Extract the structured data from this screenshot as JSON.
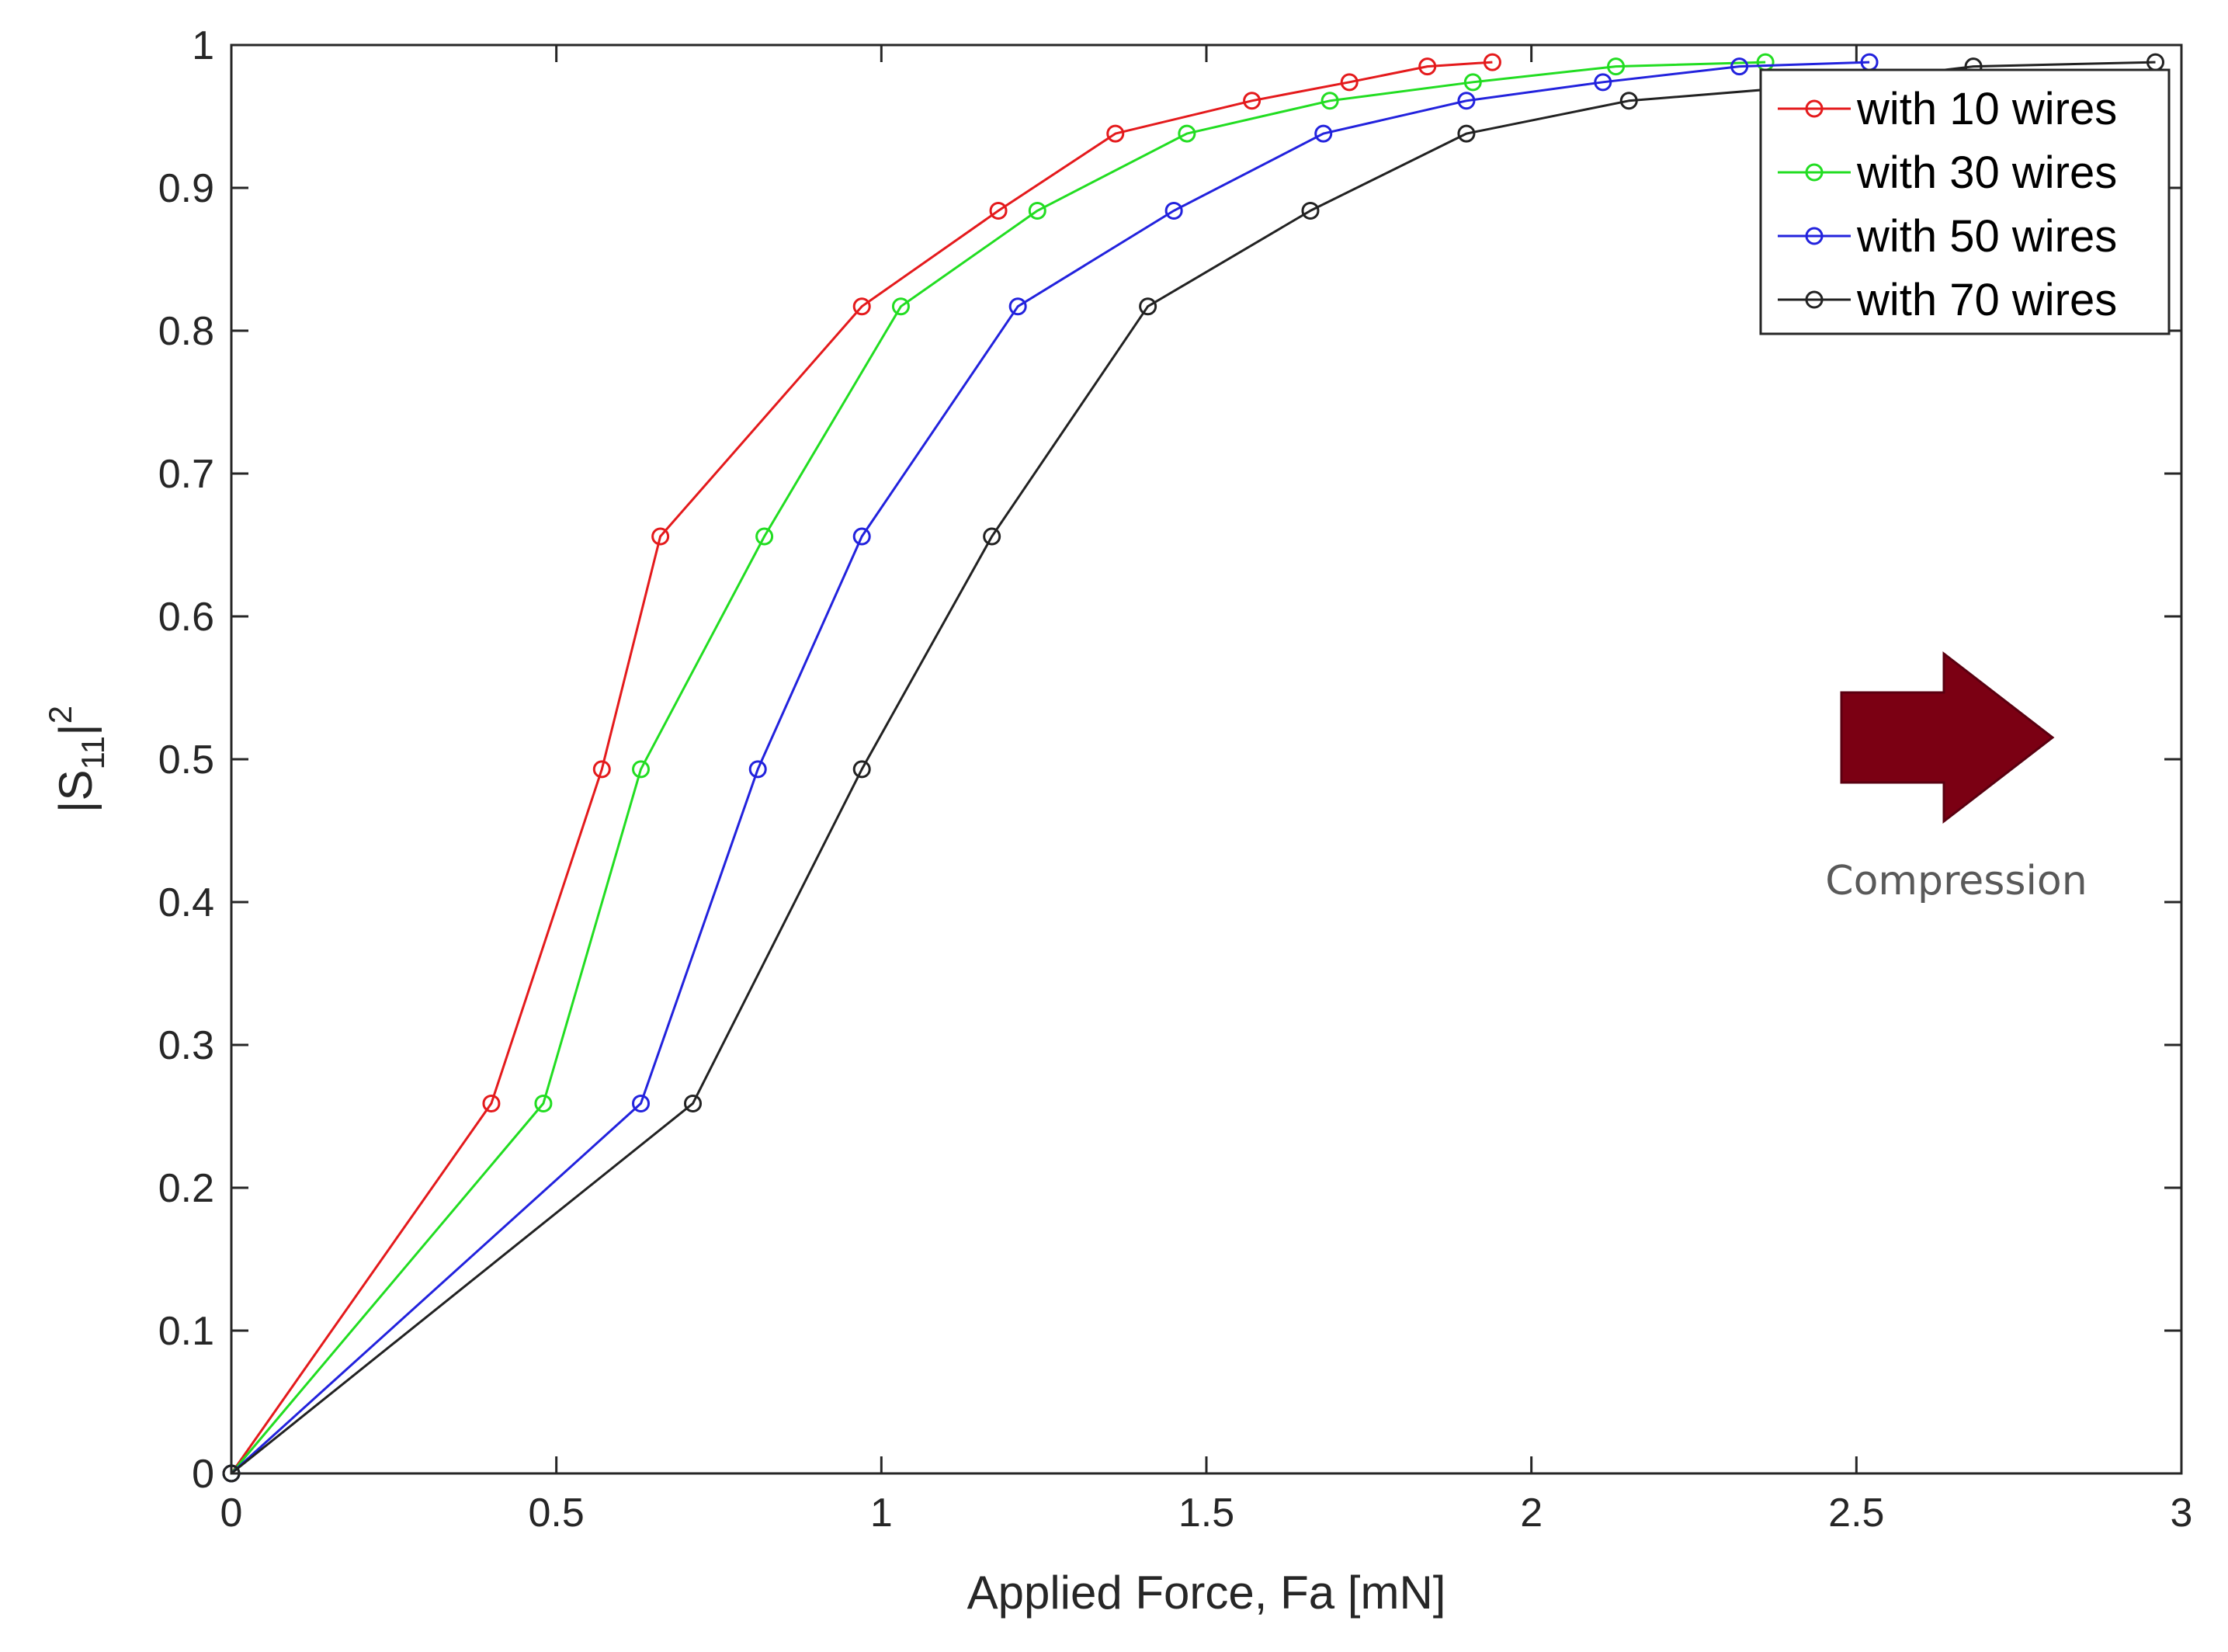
{
  "chart_data": {
    "type": "line",
    "xlabel": "Applied Force, Fa [mN]",
    "ylabel": {
      "prefix": "|S",
      "sub": "11",
      "suffix": "|",
      "sup": "2"
    },
    "xlim": [
      0,
      3
    ],
    "ylim": [
      0,
      1
    ],
    "xticks": [
      0,
      0.5,
      1,
      1.5,
      2,
      2.5,
      3
    ],
    "xtick_labels": [
      "0",
      "0.5",
      "1",
      "1.5",
      "2",
      "2.5",
      "3"
    ],
    "yticks": [
      0,
      0.1,
      0.2,
      0.3,
      0.4,
      0.5,
      0.6,
      0.7,
      0.8,
      0.9,
      1
    ],
    "ytick_labels": [
      "0",
      "0.1",
      "0.2",
      "0.3",
      "0.4",
      "0.5",
      "0.6",
      "0.7",
      "0.8",
      "0.9",
      "1"
    ],
    "grid": false,
    "legend_position": "top-right",
    "marker": "circle",
    "series": [
      {
        "name": "with 10 wires",
        "color": "#e41a1c",
        "x": [
          0,
          0.4,
          0.57,
          0.66,
          0.97,
          1.18,
          1.36,
          1.57,
          1.72,
          1.84,
          1.94
        ],
        "y": [
          0,
          0.259,
          0.493,
          0.656,
          0.817,
          0.884,
          0.938,
          0.961,
          0.974,
          0.985,
          0.988
        ]
      },
      {
        "name": "with 30 wires",
        "color": "#22dd22",
        "x": [
          0,
          0.48,
          0.63,
          0.82,
          1.03,
          1.24,
          1.47,
          1.69,
          1.91,
          2.13,
          2.36
        ],
        "y": [
          0,
          0.259,
          0.493,
          0.656,
          0.817,
          0.884,
          0.938,
          0.961,
          0.974,
          0.985,
          0.988
        ]
      },
      {
        "name": "with 50 wires",
        "color": "#2222dd",
        "x": [
          0,
          0.63,
          0.81,
          0.97,
          1.21,
          1.45,
          1.68,
          1.9,
          2.11,
          2.32,
          2.52
        ],
        "y": [
          0,
          0.259,
          0.493,
          0.656,
          0.817,
          0.884,
          0.938,
          0.961,
          0.974,
          0.985,
          0.988
        ]
      },
      {
        "name": "with 70 wires",
        "color": "#222222",
        "x": [
          0,
          0.71,
          0.97,
          1.17,
          1.41,
          1.66,
          1.9,
          2.15,
          2.42,
          2.68,
          2.96
        ],
        "y": [
          0,
          0.259,
          0.493,
          0.656,
          0.817,
          0.884,
          0.938,
          0.961,
          0.971,
          0.985,
          0.988
        ]
      }
    ],
    "annotation": {
      "text": "Compression",
      "arrow_color": "#7b0013",
      "arrow_direction": "right"
    }
  }
}
